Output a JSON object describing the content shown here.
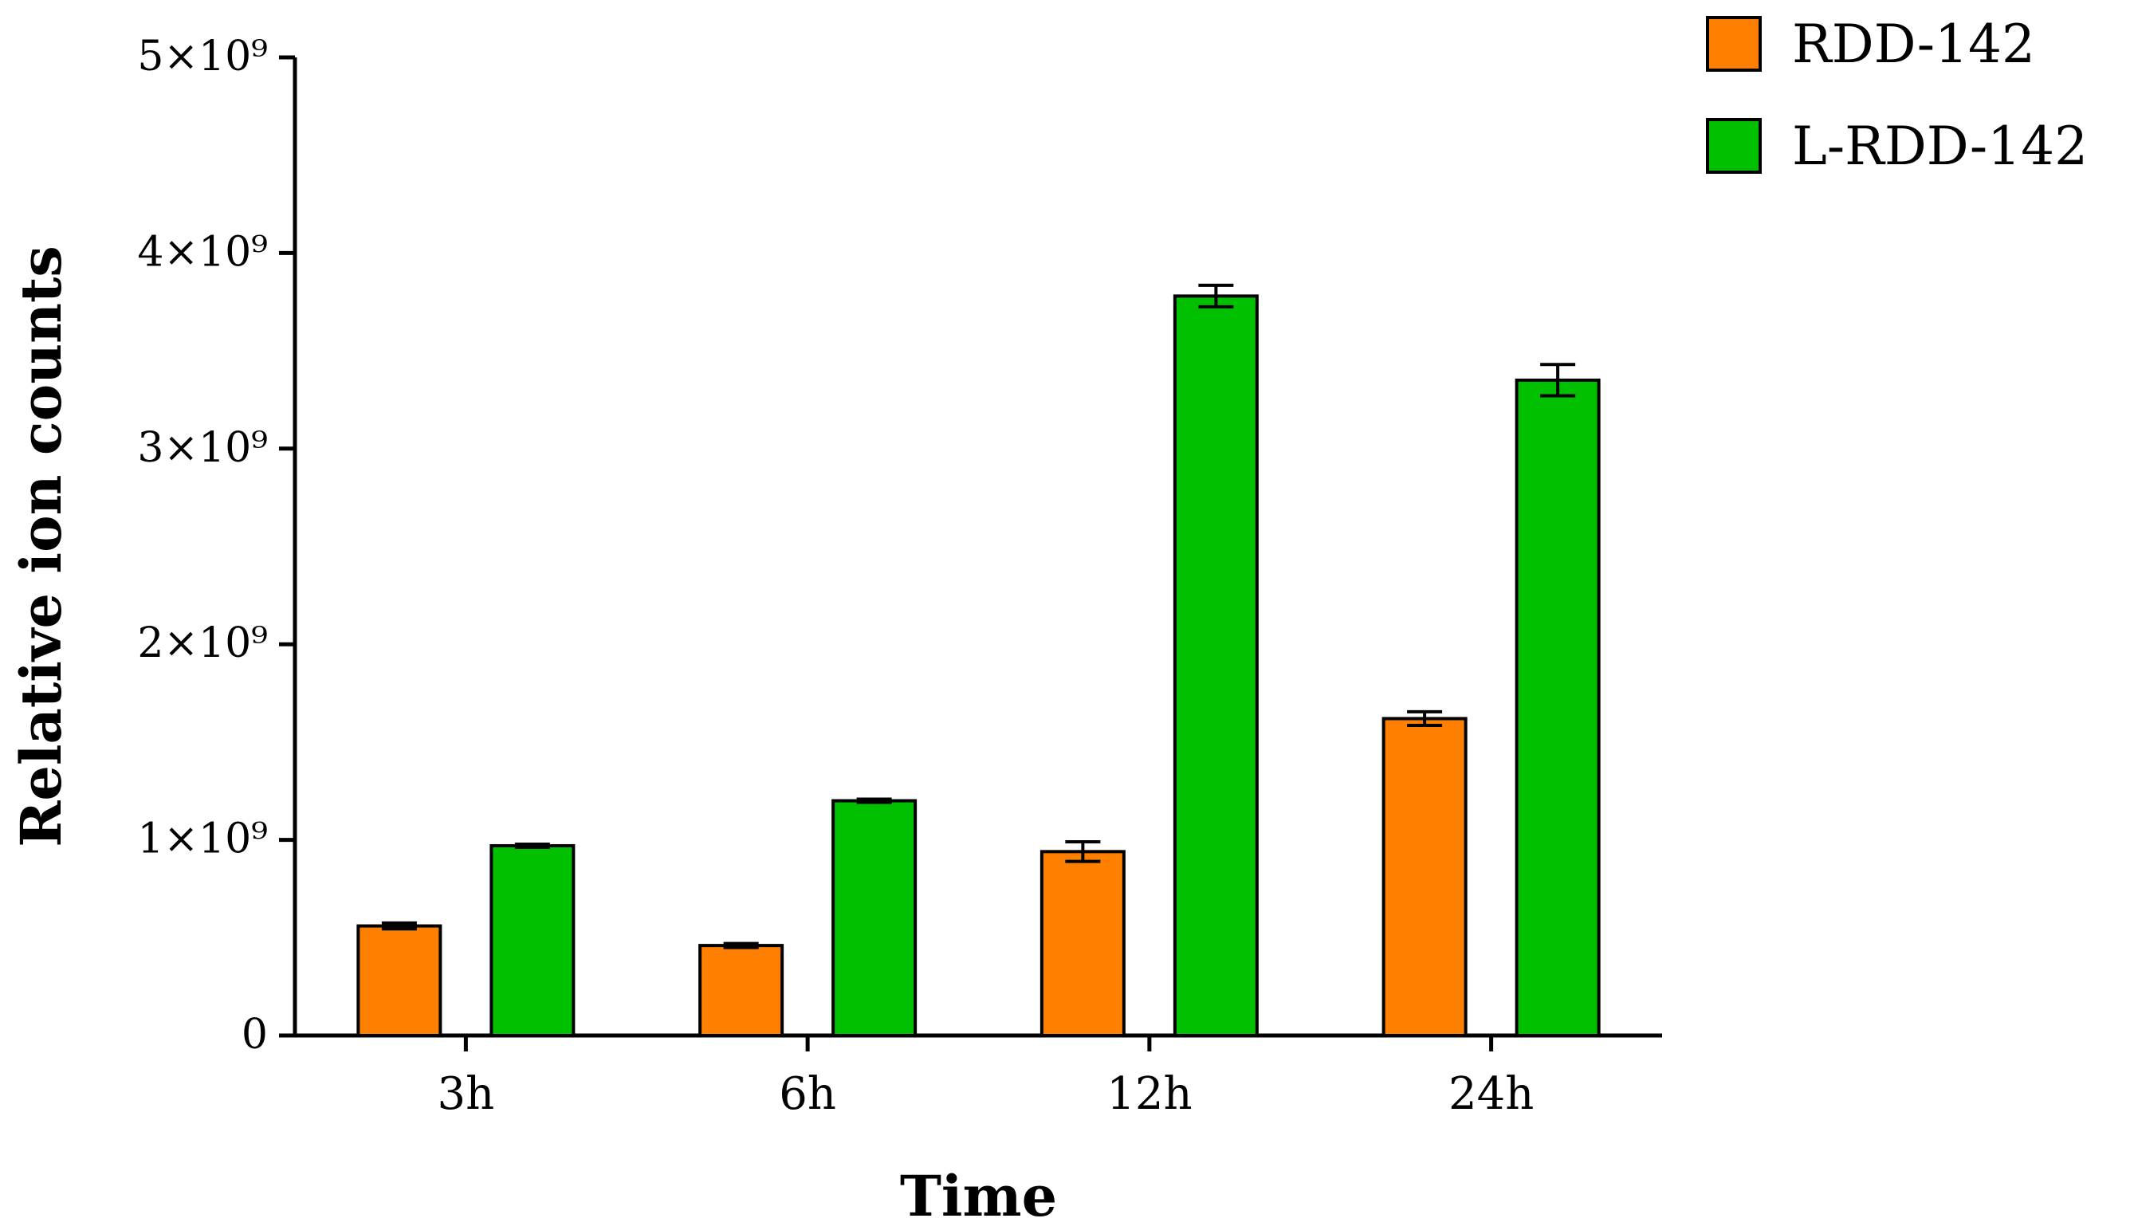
{
  "chart_data": {
    "type": "bar",
    "title": "",
    "xlabel": "Time",
    "ylabel": "Relative ion counts",
    "categories": [
      "3h",
      "6h",
      "12h",
      "24h"
    ],
    "yticks": [
      {
        "value": 0,
        "label": "0"
      },
      {
        "value": 1000000000,
        "label": "1×10⁹"
      },
      {
        "value": 2000000000,
        "label": "2×10⁹"
      },
      {
        "value": 3000000000,
        "label": "3×10⁹"
      },
      {
        "value": 4000000000,
        "label": "4×10⁹"
      },
      {
        "value": 5000000000,
        "label": "5×10⁹"
      }
    ],
    "ylim": [
      0,
      5000000000
    ],
    "grid": false,
    "legend_position": "top-right",
    "series": [
      {
        "name": "RDD-142",
        "color": "#ff8000",
        "values": [
          560000000,
          460000000,
          940000000,
          1620000000
        ],
        "errors": [
          15000000,
          10000000,
          50000000,
          35000000
        ]
      },
      {
        "name": "L-RDD-142",
        "color": "#00c000",
        "values": [
          970000000,
          1200000000,
          3780000000,
          3350000000
        ],
        "errors": [
          8000000,
          8000000,
          55000000,
          80000000
        ]
      }
    ]
  }
}
